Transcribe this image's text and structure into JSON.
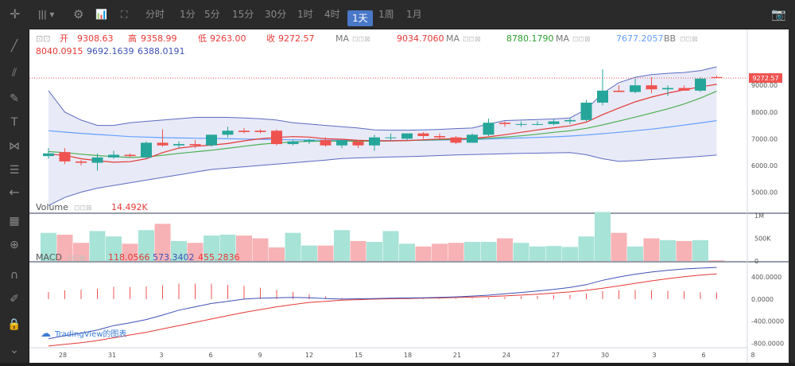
{
  "toolbar": {
    "interval_label": "1天",
    "intervals": [
      "分时",
      "1分",
      "5分",
      "15分",
      "30分",
      "1时",
      "4时",
      "1天",
      "1周",
      "1月"
    ]
  },
  "legend": {
    "open_label": "开",
    "open": "9308.63",
    "high_label": "高",
    "high": "9358.99",
    "low_label": "低",
    "low": "9263.00",
    "close_label": "收",
    "close": "9272.57",
    "ma1_label": "MA",
    "ma1": "9034.7060",
    "ma2_label": "MA",
    "ma2": "8780.1790",
    "ma3_label": "MA",
    "ma3": "7677.2057",
    "bb_label": "BB",
    "bb_values": [
      "8040.0915",
      "9692.1639",
      "6388.0191"
    ],
    "volume_label": "Volume",
    "volume": "14.492K",
    "macd_label": "MACD",
    "macd_values": [
      "118.0566",
      "573.3402",
      "455.2836"
    ],
    "watermark": "TradingView的图表"
  },
  "colors": {
    "up": "#26a69a",
    "down": "#ef5350",
    "ma1": "#e53935",
    "ma2": "#4caf50",
    "ma3": "#64a0ff",
    "bb": "#5c6bc0",
    "macd": "#3f51b5",
    "signal": "#e53935"
  },
  "chart_data": {
    "type": "candlestick",
    "x_tick_labels": [
      "28",
      "31",
      "3",
      "6",
      "9",
      "12",
      "15",
      "18",
      "21",
      "24",
      "27",
      "30",
      "3",
      "6",
      "8"
    ],
    "y_tick_labels": [
      "5000.00",
      "6000.00",
      "7000.00",
      "8000.00",
      "9000.00"
    ],
    "last_price_label": "9272.57",
    "volume_tick_labels": [
      "1M",
      "500K",
      "0"
    ],
    "macd_tick_labels": [
      "400.0000",
      "0.0000",
      "-400.0000",
      "-800.0000"
    ],
    "ylim": [
      4300,
      9900
    ],
    "vol_max": 1000,
    "macd_lim": [
      -880,
      560
    ],
    "candles": [
      [
        6350,
        6650,
        6250,
        6450
      ],
      [
        6500,
        6650,
        6050,
        6150
      ],
      [
        6150,
        6200,
        6000,
        6100
      ],
      [
        6100,
        6450,
        5800,
        6300
      ],
      [
        6300,
        6550,
        6250,
        6400
      ],
      [
        6400,
        6450,
        6300,
        6350
      ],
      [
        6300,
        6900,
        6250,
        6850
      ],
      [
        6850,
        7350,
        6700,
        6750
      ],
      [
        6750,
        6900,
        6650,
        6800
      ],
      [
        6800,
        6950,
        6650,
        6750
      ],
      [
        6750,
        7150,
        6700,
        7150
      ],
      [
        7150,
        7450,
        7050,
        7300
      ],
      [
        7300,
        7400,
        7200,
        7250
      ],
      [
        7300,
        7350,
        7200,
        7250
      ],
      [
        7300,
        7350,
        6750,
        6800
      ],
      [
        6800,
        6950,
        6750,
        6900
      ],
      [
        6900,
        7000,
        6800,
        6950
      ],
      [
        6950,
        7050,
        6700,
        6750
      ],
      [
        6750,
        6950,
        6650,
        6950
      ],
      [
        6900,
        6950,
        6650,
        6750
      ],
      [
        6750,
        7150,
        6550,
        7050
      ],
      [
        7050,
        7200,
        6950,
        7050
      ],
      [
        7000,
        7200,
        6950,
        7200
      ],
      [
        7200,
        7250,
        7000,
        7100
      ],
      [
        7100,
        7200,
        7000,
        7050
      ],
      [
        7050,
        7100,
        6800,
        6850
      ],
      [
        6850,
        7200,
        6850,
        7150
      ],
      [
        7150,
        7750,
        7100,
        7600
      ],
      [
        7600,
        7650,
        7450,
        7550
      ],
      [
        7550,
        7650,
        7450,
        7550
      ],
      [
        7550,
        7650,
        7500,
        7550
      ],
      [
        7550,
        7750,
        7500,
        7650
      ],
      [
        7650,
        7800,
        7550,
        7700
      ],
      [
        7700,
        8450,
        7650,
        8350
      ],
      [
        8350,
        9600,
        8250,
        8800
      ],
      [
        8800,
        9000,
        8750,
        8750
      ],
      [
        8750,
        9250,
        8700,
        9000
      ],
      [
        9000,
        9300,
        8700,
        8850
      ],
      [
        8850,
        9000,
        8600,
        8900
      ],
      [
        8900,
        9000,
        8800,
        8800
      ],
      [
        8800,
        9300,
        8750,
        9250
      ],
      [
        9308.63,
        9358.99,
        9263,
        9272.57
      ]
    ],
    "ma1": [
      6420,
      6380,
      6250,
      6180,
      6120,
      6140,
      6250,
      6480,
      6650,
      6720,
      6760,
      6820,
      6920,
      7000,
      7050,
      7080,
      7060,
      7000,
      6980,
      6940,
      6920,
      6920,
      6930,
      6960,
      6990,
      7000,
      7010,
      7070,
      7150,
      7240,
      7330,
      7410,
      7480,
      7620,
      7900,
      8150,
      8380,
      8560,
      8710,
      8830,
      8940,
      9034.706
    ],
    "ma2": [
      6520,
      6480,
      6420,
      6370,
      6330,
      6300,
      6320,
      6380,
      6450,
      6510,
      6570,
      6640,
      6720,
      6790,
      6840,
      6880,
      6900,
      6910,
      6910,
      6910,
      6910,
      6915,
      6930,
      6950,
      6965,
      6980,
      6995,
      7020,
      7060,
      7110,
      7170,
      7240,
      7300,
      7390,
      7520,
      7660,
      7810,
      7960,
      8120,
      8300,
      8520,
      8780.179
    ],
    "ma3": [
      7300,
      7250,
      7200,
      7160,
      7120,
      7080,
      7060,
      7040,
      7030,
      7020,
      7010,
      7000,
      6990,
      6980,
      6970,
      6960,
      6950,
      6945,
      6940,
      6935,
      6930,
      6930,
      6935,
      6940,
      6950,
      6960,
      6970,
      6990,
      7010,
      7030,
      7050,
      7070,
      7100,
      7140,
      7190,
      7240,
      7300,
      7360,
      7430,
      7510,
      7590,
      7677.2057
    ],
    "bb_upper": [
      8800,
      8000,
      7700,
      7500,
      7500,
      7600,
      7650,
      7700,
      7750,
      7800,
      7800,
      7800,
      7780,
      7750,
      7700,
      7600,
      7550,
      7500,
      7450,
      7400,
      7330,
      7320,
      7320,
      7330,
      7350,
      7380,
      7400,
      7550,
      7680,
      7700,
      7720,
      7740,
      7780,
      8100,
      8700,
      9100,
      9300,
      9400,
      9450,
      9480,
      9550,
      9692.1639
    ],
    "bb_lower": [
      4500,
      4800,
      5000,
      5150,
      5250,
      5350,
      5450,
      5550,
      5650,
      5750,
      5850,
      5900,
      5950,
      6000,
      6050,
      6100,
      6150,
      6200,
      6260,
      6280,
      6300,
      6320,
      6330,
      6350,
      6370,
      6390,
      6410,
      6420,
      6440,
      6450,
      6460,
      6470,
      6480,
      6400,
      6250,
      6150,
      6180,
      6220,
      6260,
      6300,
      6340,
      6388.0191
    ],
    "volume": [
      620,
      580,
      400,
      660,
      540,
      380,
      680,
      820,
      440,
      400,
      560,
      580,
      560,
      500,
      300,
      620,
      340,
      340,
      680,
      440,
      420,
      660,
      380,
      320,
      380,
      400,
      420,
      420,
      500,
      400,
      320,
      330,
      310,
      540,
      1080,
      620,
      320,
      500,
      460,
      440,
      460,
      14.492
    ],
    "macd_line": [
      -720,
      -660,
      -620,
      -560,
      -480,
      -430,
      -370,
      -290,
      -200,
      -140,
      -80,
      -40,
      0,
      15,
      25,
      30,
      25,
      10,
      0,
      5,
      10,
      15,
      20,
      25,
      30,
      40,
      55,
      70,
      95,
      120,
      145,
      175,
      210,
      260,
      340,
      400,
      450,
      490,
      520,
      545,
      560,
      573.3402
    ],
    "signal_line": [
      -850,
      -820,
      -790,
      -750,
      -700,
      -650,
      -600,
      -540,
      -480,
      -420,
      -360,
      -300,
      -240,
      -190,
      -140,
      -100,
      -60,
      -40,
      -20,
      -10,
      0,
      5,
      10,
      15,
      20,
      28,
      36,
      46,
      58,
      72,
      88,
      108,
      130,
      158,
      195,
      240,
      285,
      330,
      370,
      405,
      435,
      455.2836
    ],
    "histogram": [
      130,
      160,
      170,
      190,
      220,
      220,
      230,
      250,
      280,
      280,
      280,
      260,
      240,
      205,
      165,
      130,
      85,
      50,
      20,
      15,
      10,
      10,
      10,
      10,
      10,
      12,
      19,
      24,
      37,
      48,
      57,
      67,
      80,
      102,
      145,
      160,
      165,
      160,
      150,
      140,
      125,
      118.0566
    ]
  }
}
